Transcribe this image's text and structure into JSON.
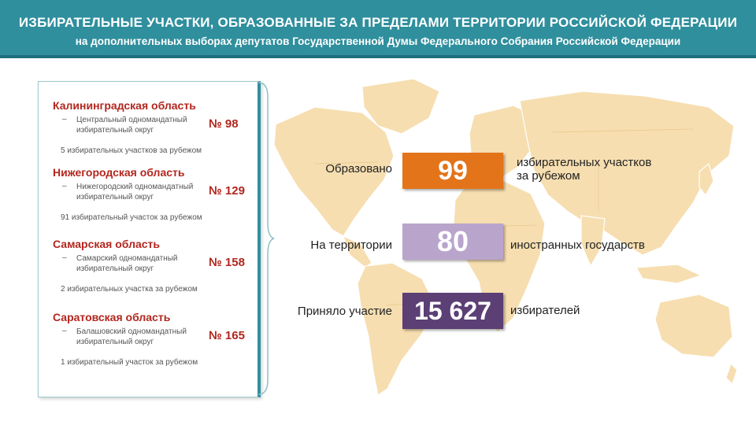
{
  "header": {
    "title": "ИЗБИРАТЕЛЬНЫЕ УЧАСТКИ, ОБРАЗОВАННЫЕ  ЗА ПРЕДЕЛАМИ ТЕРРИТОРИИ РОССИЙСКОЙ ФЕДЕРАЦИИ",
    "subtitle": "на дополнительных выборах депутатов Государственной Думы Федерального Собрания Российской Федерации"
  },
  "regions": [
    {
      "name": "Калининградская область",
      "dash": "–",
      "district_line1": "Центральный одномандатный",
      "district_line2": "избирательный округ",
      "number": "№ 98",
      "stations": "5 избирательных участков за рубежом"
    },
    {
      "name": "Нижегородская область",
      "dash": "–",
      "district_line1": "Нижегородский одномандатный",
      "district_line2": "избирательный округ",
      "number": "№ 129",
      "stations": "91 избирательный участок за рубежом"
    },
    {
      "name": "Самарская  область",
      "dash": "–",
      "district_line1": "Самарский одномандатный",
      "district_line2": "избирательный округ",
      "number": "№ 158",
      "stations": "2 избирательных участка за рубежом"
    },
    {
      "name": "Саратовская область",
      "dash": "–",
      "district_line1": "Балашовский одномандатный",
      "district_line2": "избирательный округ",
      "number": "№ 165",
      "stations": "1 избирательный участок за рубежом"
    }
  ],
  "stats": [
    {
      "label": "Образовано",
      "value": "99",
      "after_line1": "избирательных участков",
      "after_line2": "за рубежом",
      "color": "#e3741a"
    },
    {
      "label": "На территории",
      "value": "80",
      "after_line1": "иностранных государств",
      "after_line2": "",
      "color": "#b9a5cc"
    },
    {
      "label": "Приняло участие",
      "value": "15 627",
      "after_line1": "избирателей",
      "after_line2": "",
      "color": "#5b3f75"
    }
  ],
  "colors": {
    "header": "#2f8f9d",
    "accent_red": "#b3261e",
    "land": "#f6deb0",
    "land_dark": "#edcf96"
  }
}
